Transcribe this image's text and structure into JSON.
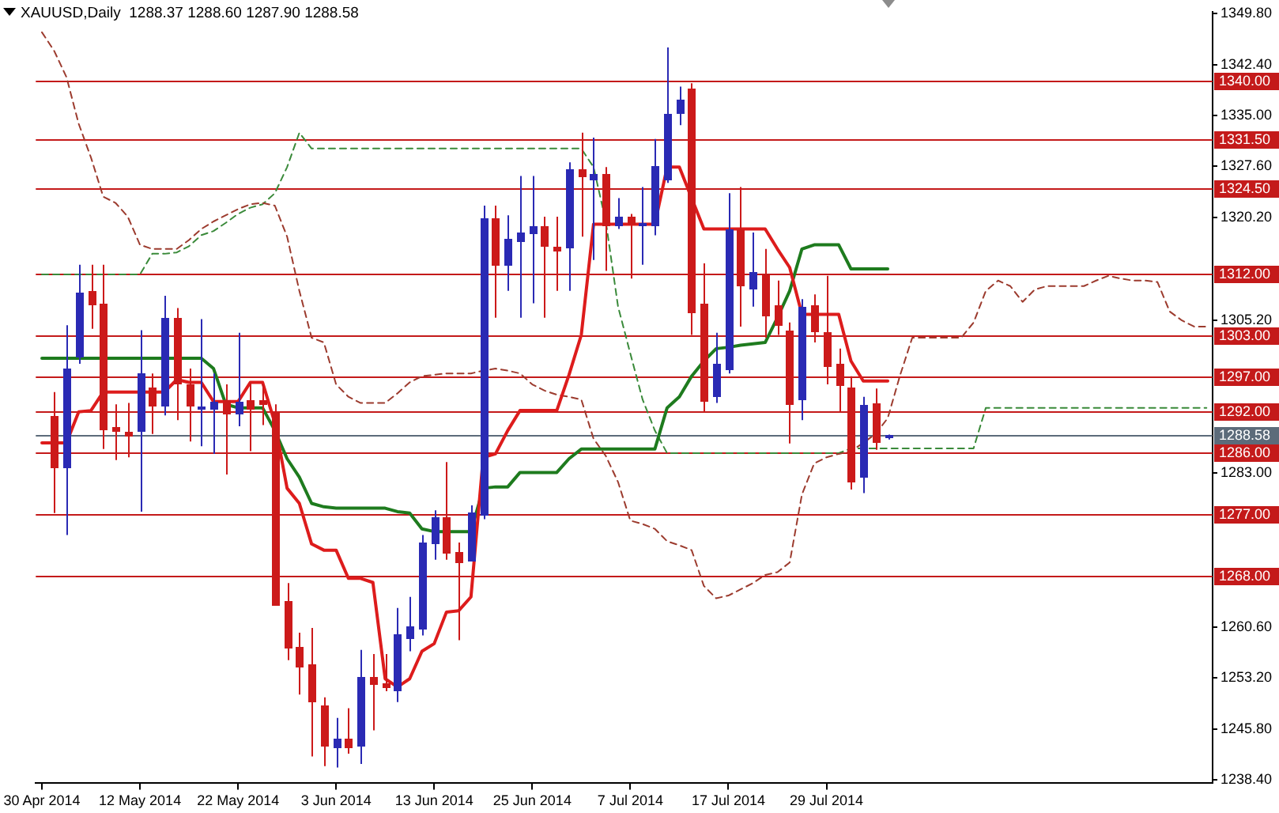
{
  "chart_data": {
    "type": "candlestick",
    "title": "XAUUSD,Daily  1288.37 1288.60 1287.90 1288.58",
    "categories": [
      "30 Apr 2014",
      null,
      null,
      null,
      null,
      null,
      null,
      null,
      "12 May 2014",
      null,
      null,
      null,
      null,
      null,
      null,
      null,
      "22 May 2014",
      null,
      null,
      null,
      null,
      null,
      null,
      null,
      "3 Jun 2014",
      null,
      null,
      null,
      null,
      null,
      null,
      null,
      "13 Jun 2014",
      null,
      null,
      null,
      null,
      null,
      null,
      null,
      "25 Jun 2014",
      null,
      null,
      null,
      null,
      null,
      null,
      null,
      "7 Jul 2014",
      null,
      null,
      null,
      null,
      null,
      null,
      null,
      "17 Jul 2014",
      null,
      null,
      null,
      null,
      null,
      null,
      null,
      "29 Jul 2014",
      null,
      null,
      null,
      null,
      null,
      null,
      null,
      null,
      null,
      null,
      null,
      null,
      null,
      null,
      null,
      null,
      null,
      null,
      null,
      null,
      null,
      null,
      null,
      null,
      null,
      null,
      null,
      null,
      null,
      null,
      null
    ],
    "ohlc": [
      null,
      [
        1291.4,
        1294.8,
        1277.2,
        1284.0
      ],
      [
        1284.0,
        1304.5,
        1274.0,
        1298.2
      ],
      [
        1300.0,
        1313.3,
        1298.9,
        1309.2
      ],
      [
        1309.5,
        1313.3,
        1304.0,
        1307.7
      ],
      [
        1307.7,
        1313.3,
        1286.5,
        1289.6
      ],
      [
        1289.6,
        1293.0,
        1284.9,
        1289.2
      ],
      [
        1288.9,
        1293.2,
        1285.3,
        1288.5
      ],
      [
        1289.2,
        1303.8,
        1277.4,
        1297.5
      ],
      [
        1295.5,
        1297.5,
        1288.7,
        1293.0
      ],
      [
        1293.0,
        1308.8,
        1291.4,
        1305.6
      ],
      [
        1305.6,
        1307.0,
        1290.7,
        1296.2
      ],
      [
        1295.9,
        1298.2,
        1287.6,
        1292.8
      ],
      [
        1292.4,
        1305.4,
        1286.9,
        1292.6
      ],
      [
        1292.5,
        1297.5,
        1285.8,
        1293.4
      ],
      [
        1293.7,
        1295.9,
        1282.8,
        1291.9
      ],
      [
        1291.9,
        1303.4,
        1289.8,
        1293.4
      ],
      [
        1293.7,
        1296.2,
        1286.2,
        1292.5
      ],
      [
        1293.7,
        1295.9,
        1290.0,
        1293.2
      ],
      [
        1292.1,
        1293.0,
        1263.9,
        1264.1
      ],
      [
        1264.3,
        1267.0,
        1255.8,
        1257.6
      ],
      [
        1257.8,
        1259.8,
        1250.8,
        1255.1
      ],
      [
        1255.3,
        1260.5,
        1241.8,
        1250.1
      ],
      [
        1249.2,
        1250.4,
        1240.4,
        1243.4
      ],
      [
        1243.4,
        1247.4,
        1240.2,
        1244.5
      ],
      [
        1244.5,
        1248.8,
        1242.2,
        1243.4
      ],
      [
        1243.4,
        1257.3,
        1240.7,
        1253.3
      ],
      [
        1253.3,
        1256.7,
        1245.6,
        1252.4
      ],
      [
        1252.4,
        1256.7,
        1251.3,
        1251.9
      ],
      [
        1251.5,
        1263.4,
        1249.7,
        1259.6
      ],
      [
        1259.2,
        1265.0,
        1257.1,
        1260.7
      ],
      [
        1260.5,
        1274.0,
        1259.4,
        1272.9
      ],
      [
        1272.9,
        1277.6,
        1270.4,
        1276.5
      ],
      [
        1276.7,
        1284.6,
        1270.4,
        1271.6
      ],
      [
        1271.6,
        1272.9,
        1258.7,
        1270.2
      ],
      [
        1270.2,
        1278.3,
        1270.2,
        1277.2
      ],
      [
        1277.2,
        1321.9,
        1276.3,
        1320.1
      ],
      [
        1320.1,
        1321.9,
        1305.6,
        1313.5
      ],
      [
        1313.5,
        1320.5,
        1309.5,
        1317.1
      ],
      [
        1316.9,
        1326.2,
        1305.6,
        1318.0
      ],
      [
        1318.0,
        1326.2,
        1307.7,
        1318.9
      ],
      [
        1318.9,
        1320.3,
        1305.6,
        1316.2
      ],
      [
        1316.0,
        1320.3,
        1309.5,
        1315.6
      ],
      [
        1315.8,
        1328.2,
        1309.5,
        1327.1
      ],
      [
        1327.1,
        1332.5,
        1317.4,
        1326.2
      ],
      [
        1325.9,
        1331.8,
        1314.0,
        1326.6
      ],
      [
        1326.6,
        1327.5,
        1312.4,
        1319.2
      ],
      [
        1319.2,
        1323.0,
        1318.5,
        1320.3
      ],
      [
        1320.3,
        1320.7,
        1311.3,
        1319.4
      ],
      [
        1319.2,
        1324.6,
        1313.3,
        1319.4
      ],
      [
        1319.2,
        1331.6,
        1317.6,
        1327.7
      ],
      [
        1325.7,
        1344.9,
        1325.2,
        1335.2
      ],
      [
        1335.4,
        1339.2,
        1333.6,
        1337.2
      ],
      [
        1339.0,
        1339.7,
        1303.1,
        1306.5
      ],
      [
        1307.7,
        1313.5,
        1291.9,
        1293.7
      ],
      [
        1294.4,
        1303.4,
        1293.2,
        1298.9
      ],
      [
        1298.2,
        1323.7,
        1297.5,
        1318.5
      ],
      [
        1318.5,
        1324.6,
        1304.3,
        1310.4
      ],
      [
        1309.9,
        1318.0,
        1307.2,
        1312.2
      ],
      [
        1311.7,
        1315.6,
        1302.7,
        1305.9
      ],
      [
        1307.4,
        1311.0,
        1303.1,
        1304.7
      ],
      [
        1303.8,
        1304.9,
        1287.3,
        1293.2
      ],
      [
        1293.9,
        1308.3,
        1290.7,
        1307.2
      ],
      [
        1307.4,
        1309.0,
        1302.0,
        1303.8
      ],
      [
        1303.4,
        1311.7,
        1295.9,
        1298.6
      ],
      [
        1298.9,
        1301.1,
        1291.9,
        1295.9
      ],
      [
        1295.5,
        1297.1,
        1280.6,
        1281.9
      ],
      [
        1282.6,
        1294.1,
        1280.1,
        1293.0
      ],
      [
        1293.2,
        1295.3,
        1286.4,
        1287.6
      ],
      [
        1288.37,
        1288.6,
        1287.9,
        1288.58
      ],
      null,
      null,
      null,
      null,
      null,
      null,
      null,
      null,
      null,
      null,
      null,
      null,
      null,
      null,
      null,
      null,
      null,
      null,
      null,
      null,
      null,
      null,
      null,
      null,
      null,
      null
    ],
    "colors": [
      null,
      "#cc1a1a",
      "#2a2ab4",
      "#2a2ab4",
      "#cc1a1a",
      "#cc1a1a",
      "#cc1a1a",
      "#cc1a1a",
      "#2a2ab4",
      "#cc1a1a",
      "#2a2ab4",
      "#cc1a1a",
      "#cc1a1a",
      "#2a2ab4",
      "#2a2ab4",
      "#cc1a1a",
      "#2a2ab4",
      "#cc1a1a",
      "#cc1a1a",
      "#cc1a1a",
      "#cc1a1a",
      "#cc1a1a",
      "#cc1a1a",
      "#cc1a1a",
      "#2a2ab4",
      "#cc1a1a",
      "#2a2ab4",
      "#cc1a1a",
      "#cc1a1a",
      "#2a2ab4",
      "#2a2ab4",
      "#2a2ab4",
      "#2a2ab4",
      "#cc1a1a",
      "#cc1a1a",
      "#2a2ab4",
      "#2a2ab4",
      "#cc1a1a",
      "#2a2ab4",
      "#2a2ab4",
      "#2a2ab4",
      "#cc1a1a",
      "#cc1a1a",
      "#2a2ab4",
      "#cc1a1a",
      "#2a2ab4",
      "#cc1a1a",
      "#2a2ab4",
      "#cc1a1a",
      "#2a2ab4",
      "#2a2ab4",
      "#2a2ab4",
      "#2a2ab4",
      "#cc1a1a",
      "#cc1a1a",
      "#2a2ab4",
      "#2a2ab4",
      "#cc1a1a",
      "#2a2ab4",
      "#cc1a1a",
      "#cc1a1a",
      "#cc1a1a",
      "#2a2ab4",
      "#cc1a1a",
      "#cc1a1a",
      "#cc1a1a",
      "#cc1a1a",
      "#2a2ab4",
      "#cc1a1a",
      "#2a2ab4",
      null,
      null,
      null,
      null,
      null,
      null,
      null,
      null,
      null,
      null,
      null,
      null,
      null,
      null,
      null,
      null,
      null,
      null,
      null,
      null,
      null,
      null,
      null,
      null,
      null,
      null
    ],
    "series": [
      {
        "type": "line",
        "color": "#dd1c1c",
        "line_style": "solid",
        "values": [
          1287.4,
          1287.4,
          1287.4,
          1291.9,
          1292.1,
          1294.8,
          1294.8,
          1294.8,
          1294.8,
          1294.8,
          1294.8,
          1296.6,
          1296.2,
          1296.2,
          1293.4,
          1293.4,
          1293.4,
          1296.2,
          1296.2,
          1290.3,
          1280.8,
          1278.6,
          1272.7,
          1271.8,
          1271.8,
          1267.7,
          1267.7,
          1267.1,
          1253.1,
          1251.9,
          1253.1,
          1257.1,
          1258.2,
          1262.8,
          1263.0,
          1265.0,
          1285.3,
          1285.8,
          1289.2,
          1292.1,
          1292.1,
          1292.1,
          1292.1,
          1297.3,
          1303.1,
          1319.2,
          1319.2,
          1319.2,
          1319.2,
          1319.2,
          1319.2,
          1327.5,
          1327.5,
          1323.0,
          1318.5,
          1318.5,
          1318.5,
          1318.5,
          1318.5,
          1318.5,
          1315.6,
          1312.9,
          1306.1,
          1306.1,
          1306.1,
          1306.1,
          1299.3,
          1296.4,
          1296.4,
          1296.4,
          null,
          null,
          null,
          null,
          null,
          null,
          null,
          null,
          null,
          null,
          null,
          null,
          null,
          null,
          null,
          null,
          null,
          null,
          null,
          null,
          null,
          null,
          null,
          null,
          null,
          null
        ]
      },
      {
        "type": "line",
        "color": "#1e7b1e",
        "line_style": "solid",
        "values": [
          1299.7,
          1299.7,
          1299.7,
          1299.7,
          1299.7,
          1299.7,
          1299.7,
          1299.7,
          1299.7,
          1299.7,
          1299.7,
          1299.7,
          1299.7,
          1299.7,
          1298.2,
          1293.0,
          1292.5,
          1292.5,
          1292.5,
          1289.2,
          1285.1,
          1282.4,
          1278.6,
          1278.1,
          1277.9,
          1277.9,
          1277.9,
          1277.9,
          1277.9,
          1277.4,
          1277.2,
          1274.9,
          1274.5,
          1274.5,
          1274.5,
          1274.5,
          1280.8,
          1281.0,
          1281.0,
          1283.1,
          1283.1,
          1283.1,
          1283.1,
          1285.1,
          1286.5,
          1286.5,
          1286.5,
          1286.5,
          1286.5,
          1286.5,
          1286.5,
          1292.5,
          1294.1,
          1297.1,
          1299.3,
          1301.1,
          1301.3,
          1301.6,
          1301.8,
          1302.0,
          1305.6,
          1309.5,
          1315.6,
          1316.2,
          1316.2,
          1316.2,
          1312.7,
          1312.7,
          1312.7,
          1312.7,
          null,
          null,
          null,
          null,
          null,
          null,
          null,
          null,
          null,
          null,
          null,
          null,
          null,
          null,
          null,
          null,
          null,
          null,
          null,
          null,
          null,
          null,
          null,
          null,
          null,
          null
        ]
      },
      {
        "type": "line",
        "color": "#9c3b2e",
        "line_style": "dashed",
        "values": [
          1347.1,
          1344.4,
          1340.6,
          1333.8,
          1328.9,
          1323.2,
          1322.3,
          1320.3,
          1316.2,
          1315.6,
          1315.6,
          1315.6,
          1316.9,
          1318.5,
          1319.6,
          1320.5,
          1321.4,
          1322.1,
          1322.3,
          1321.9,
          1317.4,
          1309.5,
          1302.7,
          1302.0,
          1295.9,
          1294.1,
          1293.2,
          1293.2,
          1293.2,
          1294.6,
          1296.2,
          1297.1,
          1297.3,
          1297.5,
          1297.5,
          1297.5,
          1297.9,
          1298.2,
          1297.9,
          1297.5,
          1295.9,
          1295.0,
          1294.4,
          1294.1,
          1293.7,
          1288.0,
          1285.5,
          1281.7,
          1276.1,
          1275.6,
          1274.9,
          1273.1,
          1272.5,
          1271.8,
          1266.6,
          1264.8,
          1265.2,
          1266.1,
          1267.0,
          1268.2,
          1268.6,
          1270.0,
          1279.9,
          1284.4,
          1285.3,
          1285.8,
          1286.2,
          1287.4,
          1288.7,
          1291.0,
          1297.2,
          1302.7,
          1302.7,
          1302.7,
          1302.7,
          1302.7,
          1304.9,
          1309.5,
          1311.0,
          1310.2,
          1307.9,
          1309.7,
          1310.2,
          1310.2,
          1310.2,
          1310.2,
          1311.0,
          1311.7,
          1311.3,
          1311.0,
          1311.0,
          1310.8,
          1306.5,
          1305.2,
          1304.3,
          1304.3
        ]
      },
      {
        "type": "line",
        "color": "#3a8a3a",
        "line_style": "dashed",
        "values": [
          1311.9,
          1311.9,
          1311.9,
          1311.9,
          1311.9,
          1311.9,
          1311.9,
          1311.9,
          1311.9,
          1314.9,
          1314.9,
          1315.1,
          1316.0,
          1317.6,
          1318.2,
          1319.4,
          1320.7,
          1321.6,
          1322.1,
          1323.7,
          1327.5,
          1332.5,
          1330.2,
          1330.2,
          1330.2,
          1330.2,
          1330.2,
          1330.2,
          1330.2,
          1330.2,
          1330.2,
          1330.2,
          1330.2,
          1330.2,
          1330.2,
          1330.2,
          1330.2,
          1330.2,
          1330.2,
          1330.2,
          1330.2,
          1330.2,
          1330.2,
          1330.2,
          1330.2,
          1327.5,
          1319.6,
          1307.2,
          1300.4,
          1293.7,
          1289.2,
          1285.9,
          1285.9,
          1285.9,
          1285.9,
          1285.9,
          1285.9,
          1285.9,
          1285.9,
          1285.9,
          1285.9,
          1285.9,
          1285.9,
          1285.9,
          1285.9,
          1285.9,
          1286.6,
          1286.6,
          1286.6,
          1286.6,
          1286.6,
          1286.6,
          1286.6,
          1286.6,
          1286.6,
          1286.6,
          1286.6,
          1292.5,
          1292.5,
          1292.5,
          1292.5,
          1292.5,
          1292.5,
          1292.5,
          1292.5,
          1292.5,
          1292.5,
          1292.5,
          1292.5,
          1292.5,
          1292.5,
          1292.5,
          1292.5,
          1292.5,
          1292.5,
          1292.5
        ]
      }
    ],
    "ylim": [
      1237.9,
      1350.1
    ],
    "yticks": [
      {
        "value": 1238.4,
        "label": "1238.40"
      },
      {
        "value": 1245.8,
        "label": "1245.80"
      },
      {
        "value": 1253.2,
        "label": "1253.20"
      },
      {
        "value": 1260.6,
        "label": "1260.60"
      },
      {
        "value": 1283,
        "label": "1283.00"
      },
      {
        "value": 1305.2,
        "label": "1305.20"
      },
      {
        "value": 1320.2,
        "label": "1320.20"
      },
      {
        "value": 1327.6,
        "label": "1327.60"
      },
      {
        "value": 1335,
        "label": "1335.00"
      },
      {
        "value": 1342.4,
        "label": "1342.40"
      },
      {
        "value": 1349.8,
        "label": "1349.80"
      }
    ],
    "ref_lines": [
      {
        "axis": "y",
        "value": 1340,
        "label": "1340.00",
        "color": "#c41a1a"
      },
      {
        "axis": "y",
        "value": 1331.5,
        "label": "1331.50",
        "color": "#c41a1a"
      },
      {
        "axis": "y",
        "value": 1324.5,
        "label": "1324.50",
        "color": "#c41a1a"
      },
      {
        "axis": "y",
        "value": 1312,
        "label": "1312.00",
        "color": "#c41a1a"
      },
      {
        "axis": "y",
        "value": 1303,
        "label": "1303.00",
        "color": "#c41a1a"
      },
      {
        "axis": "y",
        "value": 1297,
        "label": "1297.00",
        "color": "#c41a1a"
      },
      {
        "axis": "y",
        "value": 1292,
        "label": "1292.00",
        "color": "#c41a1a"
      },
      {
        "axis": "y",
        "value": 1286,
        "label": "1286.00",
        "color": "#c41a1a"
      },
      {
        "axis": "y",
        "value": 1277,
        "label": "1277.00",
        "color": "#c41a1a"
      },
      {
        "axis": "y",
        "value": 1268,
        "label": "1268.00",
        "color": "#c41a1a"
      },
      {
        "axis": "y",
        "value": 1288.58,
        "label": "1288.58",
        "color": "#5c6b7a"
      }
    ],
    "grid": false,
    "legend": false,
    "marker": "none"
  }
}
